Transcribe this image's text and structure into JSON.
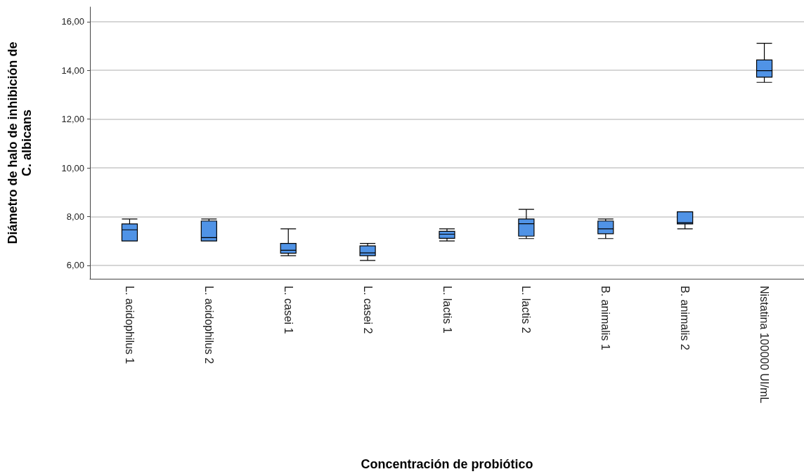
{
  "chart_data": {
    "type": "box",
    "xlabel": "Concentración de probiótico",
    "ylabel": "Diámetro de halo de inhibición de\nC. albicans",
    "categories": [
      "L. acidophilus 1",
      "L. acidophilus 2",
      "L. casei 1",
      "L. casei 2",
      "L. lactis 1",
      "L. lactis 2",
      "B. animalis 1",
      "B. animalis 2",
      "Nistatina 100000 UI/mL"
    ],
    "series": [
      {
        "color": "#5093e6",
        "boxes": [
          {
            "low": 7.0,
            "q1": 7.0,
            "median": 7.46,
            "q3": 7.7,
            "high": 7.9
          },
          {
            "low": 7.0,
            "q1": 7.0,
            "median": 7.14,
            "q3": 7.82,
            "high": 7.9
          },
          {
            "low": 6.4,
            "q1": 6.5,
            "median": 6.62,
            "q3": 6.9,
            "high": 7.5
          },
          {
            "low": 6.2,
            "q1": 6.4,
            "median": 6.51,
            "q3": 6.8,
            "high": 6.9
          },
          {
            "low": 7.0,
            "q1": 7.11,
            "median": 7.28,
            "q3": 7.4,
            "high": 7.5
          },
          {
            "low": 7.1,
            "q1": 7.2,
            "median": 7.71,
            "q3": 7.9,
            "high": 8.3
          },
          {
            "low": 7.1,
            "q1": 7.3,
            "median": 7.5,
            "q3": 7.82,
            "high": 7.9
          },
          {
            "low": 7.5,
            "q1": 7.7,
            "median": 7.75,
            "q3": 8.2,
            "high": 8.2
          },
          {
            "low": 13.51,
            "q1": 13.72,
            "median": 13.99,
            "q3": 14.43,
            "high": 15.11
          }
        ]
      }
    ],
    "ylim": [
      5.45,
      16.6
    ],
    "yticks": [
      {
        "value": 6,
        "label": "6,00"
      },
      {
        "value": 8,
        "label": "8,00"
      },
      {
        "value": 10,
        "label": "10,00"
      },
      {
        "value": 12,
        "label": "12,00"
      },
      {
        "value": 14,
        "label": "14,00"
      },
      {
        "value": 16,
        "label": "16,00"
      }
    ],
    "grid": "y"
  }
}
